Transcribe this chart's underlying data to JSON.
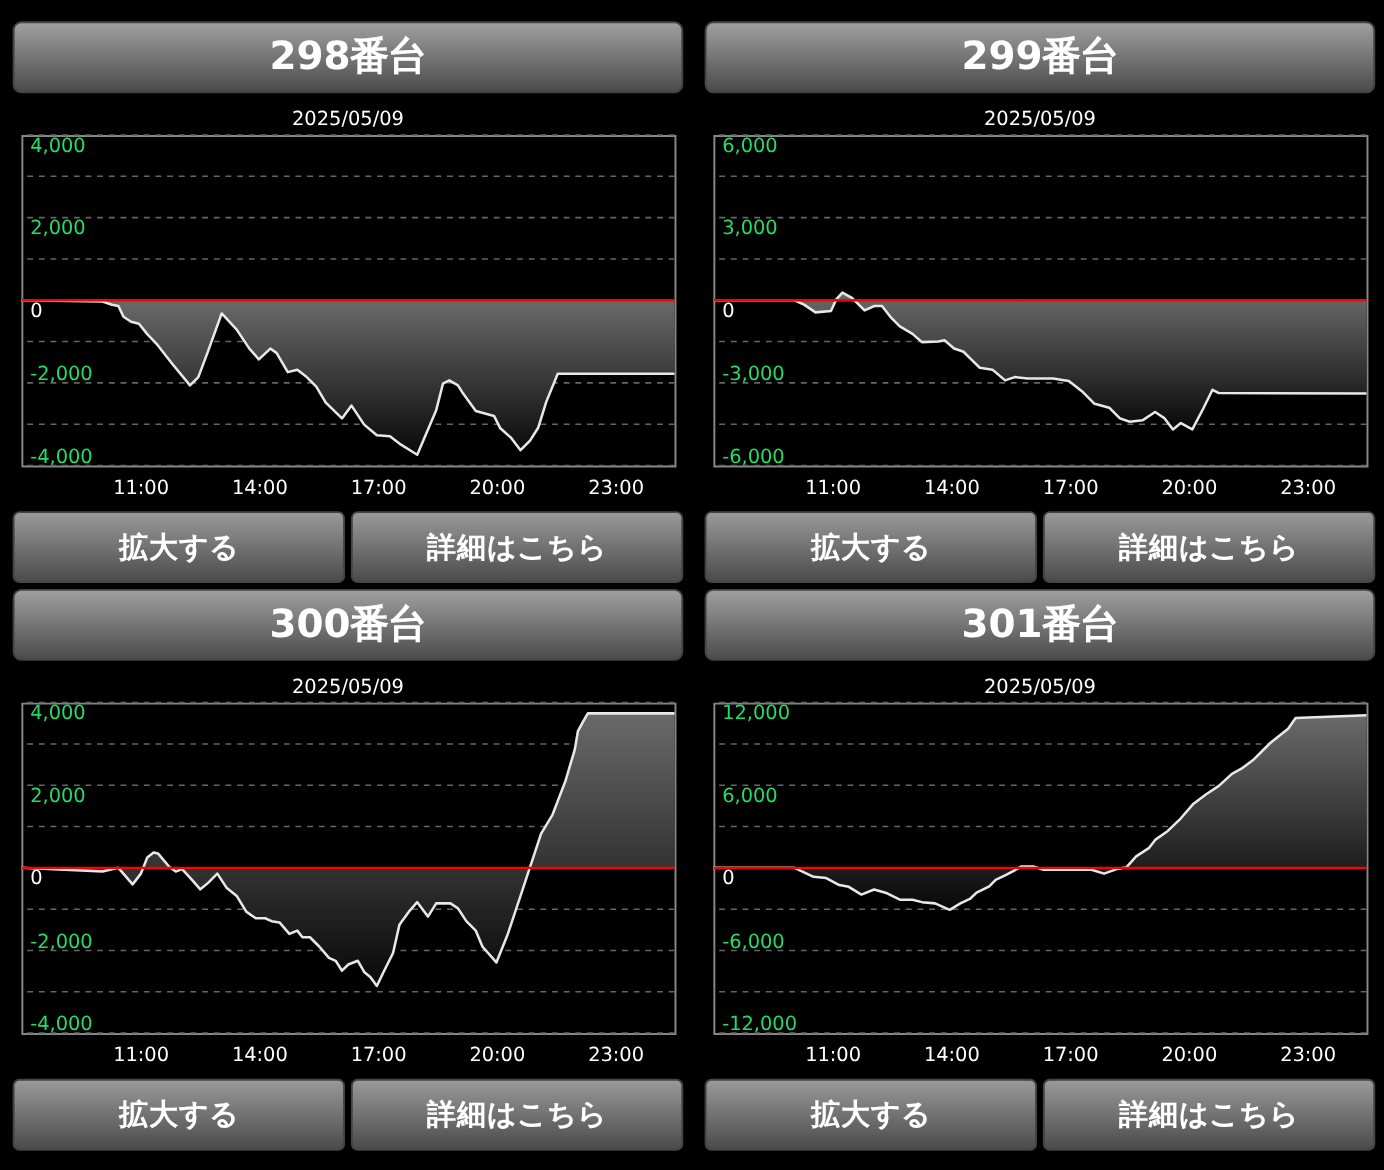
{
  "chart_data": [
    {
      "type": "area",
      "title": "298番台",
      "subtitle": "2025/05/09",
      "annotations": [
        "拡大する",
        "詳細はこちら"
      ],
      "xlim": [
        8,
        24.5
      ],
      "ylim": [
        -4000,
        4000
      ],
      "grid": "y",
      "xticks": [
        {
          "value": 11,
          "label": "11:00"
        },
        {
          "value": 14,
          "label": "14:00"
        },
        {
          "value": 17,
          "label": "17:00"
        },
        {
          "value": 20,
          "label": "20:00"
        },
        {
          "value": 23,
          "label": "23:00"
        }
      ],
      "yticks": [
        {
          "value": -4000,
          "label": "-4,000"
        },
        {
          "value": -3000,
          "label": null
        },
        {
          "value": -2000,
          "label": "-2,000"
        },
        {
          "value": -1000,
          "label": null
        },
        {
          "value": 0,
          "label": "0"
        },
        {
          "value": 1000,
          "label": null
        },
        {
          "value": 2000,
          "label": "2,000"
        },
        {
          "value": 3000,
          "label": null
        },
        {
          "value": 4000,
          "label": "4,000"
        }
      ],
      "ref_lines": [
        {
          "axis": "y",
          "value": 0,
          "color": "#ff0000"
        }
      ],
      "x": [
        8,
        10.05,
        10.29,
        10.45,
        10.58,
        10.77,
        10.97,
        11.18,
        11.42,
        11.82,
        12.26,
        12.47,
        12.71,
        13.06,
        13.44,
        13.76,
        14.0,
        14.29,
        14.45,
        14.73,
        14.97,
        15.21,
        15.45,
        15.69,
        16.1,
        16.34,
        16.66,
        16.98,
        17.31,
        17.55,
        18.0,
        18.48,
        18.65,
        18.81,
        19.03,
        19.16,
        19.48,
        19.94,
        20.1,
        20.37,
        20.61,
        20.85,
        21.06,
        21.26,
        21.55,
        24.5
      ],
      "series": [
        {
          "color": "#e8e8e8",
          "values": [
            0,
            -30,
            -110,
            -140,
            -400,
            -520,
            -570,
            -820,
            -1060,
            -1550,
            -2060,
            -1860,
            -1250,
            -320,
            -710,
            -1170,
            -1430,
            -1170,
            -1280,
            -1740,
            -1680,
            -1860,
            -2090,
            -2480,
            -2860,
            -2550,
            -3010,
            -3270,
            -3290,
            -3470,
            -3740,
            -2660,
            -2020,
            -1940,
            -2060,
            -2260,
            -2680,
            -2800,
            -3100,
            -3330,
            -3630,
            -3400,
            -3080,
            -2460,
            -1780,
            -1780
          ]
        }
      ]
    },
    {
      "type": "area",
      "title": "299番台",
      "subtitle": "2025/05/09",
      "annotations": [
        "拡大する",
        "詳細はこちら"
      ],
      "xlim": [
        8,
        24.5
      ],
      "ylim": [
        -6000,
        6000
      ],
      "grid": "y",
      "xticks": [
        {
          "value": 11,
          "label": "11:00"
        },
        {
          "value": 14,
          "label": "14:00"
        },
        {
          "value": 17,
          "label": "17:00"
        },
        {
          "value": 20,
          "label": "20:00"
        },
        {
          "value": 23,
          "label": "23:00"
        }
      ],
      "yticks": [
        {
          "value": -6000,
          "label": "-6,000"
        },
        {
          "value": -4500,
          "label": null
        },
        {
          "value": -3000,
          "label": "-3,000"
        },
        {
          "value": -1500,
          "label": null
        },
        {
          "value": 0,
          "label": "0"
        },
        {
          "value": 1500,
          "label": null
        },
        {
          "value": 3000,
          "label": "3,000"
        },
        {
          "value": 4500,
          "label": null
        },
        {
          "value": 6000,
          "label": "6,000"
        }
      ],
      "ref_lines": [
        {
          "axis": "y",
          "value": 0,
          "color": "#ff0000"
        }
      ],
      "x": [
        8,
        10.05,
        10.29,
        10.58,
        10.97,
        11.1,
        11.26,
        11.5,
        11.82,
        12.06,
        12.26,
        12.47,
        12.71,
        13.03,
        13.27,
        13.68,
        13.84,
        14.08,
        14.32,
        14.48,
        14.73,
        15.05,
        15.37,
        15.61,
        15.94,
        16.58,
        16.98,
        17.31,
        17.63,
        18.0,
        18.27,
        18.52,
        18.84,
        19.16,
        19.4,
        19.61,
        19.81,
        20.1,
        20.37,
        20.61,
        20.77,
        24.5
      ],
      "series": [
        {
          "color": "#e8e8e8",
          "values": [
            0,
            0,
            -160,
            -440,
            -390,
            20,
            280,
            90,
            -370,
            -210,
            -210,
            -600,
            -950,
            -1220,
            -1520,
            -1500,
            -1450,
            -1750,
            -1870,
            -2100,
            -2450,
            -2520,
            -2910,
            -2790,
            -2840,
            -2840,
            -2930,
            -3300,
            -3760,
            -3900,
            -4290,
            -4410,
            -4360,
            -4060,
            -4290,
            -4690,
            -4460,
            -4690,
            -3950,
            -3250,
            -3370,
            -3390
          ]
        }
      ]
    },
    {
      "type": "area",
      "title": "300番台",
      "subtitle": "2025/05/09",
      "annotations": [
        "拡大する",
        "詳細はこちら"
      ],
      "xlim": [
        8,
        24.5
      ],
      "ylim": [
        -4000,
        4000
      ],
      "grid": "y",
      "xticks": [
        {
          "value": 11,
          "label": "11:00"
        },
        {
          "value": 14,
          "label": "14:00"
        },
        {
          "value": 17,
          "label": "17:00"
        },
        {
          "value": 20,
          "label": "20:00"
        },
        {
          "value": 23,
          "label": "23:00"
        }
      ],
      "yticks": [
        {
          "value": -4000,
          "label": "-4,000"
        },
        {
          "value": -3000,
          "label": null
        },
        {
          "value": -2000,
          "label": "-2,000"
        },
        {
          "value": -1000,
          "label": null
        },
        {
          "value": 0,
          "label": "0"
        },
        {
          "value": 1000,
          "label": null
        },
        {
          "value": 2000,
          "label": "2,000"
        },
        {
          "value": 3000,
          "label": null
        },
        {
          "value": 4000,
          "label": "4,000"
        }
      ],
      "ref_lines": [
        {
          "axis": "y",
          "value": 0,
          "color": "#ff0000"
        }
      ],
      "x": [
        8,
        10.05,
        10.45,
        10.81,
        11.02,
        11.18,
        11.34,
        11.45,
        11.74,
        11.9,
        12.06,
        12.31,
        12.52,
        12.71,
        12.95,
        13.19,
        13.44,
        13.68,
        13.92,
        14.16,
        14.32,
        14.52,
        14.77,
        14.97,
        15.1,
        15.29,
        15.53,
        15.77,
        15.94,
        16.1,
        16.26,
        16.5,
        16.66,
        16.82,
        16.98,
        17.15,
        17.39,
        17.55,
        17.79,
        18.0,
        18.27,
        18.48,
        18.84,
        19.03,
        19.24,
        19.48,
        19.65,
        20.0,
        20.29,
        20.61,
        20.85,
        21.13,
        21.42,
        21.74,
        21.98,
        22.06,
        22.19,
        22.31,
        24.5
      ],
      "series": [
        {
          "color": "#e8e8e8",
          "values": [
            0,
            -90,
            0,
            -400,
            -140,
            250,
            370,
            350,
            20,
            -90,
            -30,
            -290,
            -520,
            -370,
            -140,
            -490,
            -680,
            -1060,
            -1220,
            -1220,
            -1290,
            -1320,
            -1600,
            -1520,
            -1680,
            -1680,
            -1910,
            -2180,
            -2250,
            -2490,
            -2340,
            -2250,
            -2520,
            -2650,
            -2860,
            -2520,
            -2060,
            -1380,
            -1060,
            -830,
            -1180,
            -860,
            -860,
            -980,
            -1290,
            -1520,
            -1910,
            -2290,
            -1600,
            -680,
            20,
            830,
            1290,
            2090,
            2860,
            3310,
            3540,
            3740,
            3740
          ]
        }
      ]
    },
    {
      "type": "area",
      "title": "301番台",
      "subtitle": "2025/05/09",
      "annotations": [
        "拡大する",
        "詳細はこちら"
      ],
      "xlim": [
        8,
        24.5
      ],
      "ylim": [
        -12000,
        12000
      ],
      "grid": "y",
      "xticks": [
        {
          "value": 11,
          "label": "11:00"
        },
        {
          "value": 14,
          "label": "14:00"
        },
        {
          "value": 17,
          "label": "17:00"
        },
        {
          "value": 20,
          "label": "20:00"
        },
        {
          "value": 23,
          "label": "23:00"
        }
      ],
      "yticks": [
        {
          "value": -12000,
          "label": "-12,000"
        },
        {
          "value": -9000,
          "label": null
        },
        {
          "value": -6000,
          "label": "-6,000"
        },
        {
          "value": -3000,
          "label": null
        },
        {
          "value": 0,
          "label": "0"
        },
        {
          "value": 3000,
          "label": null
        },
        {
          "value": 6000,
          "label": "6,000"
        },
        {
          "value": 9000,
          "label": null
        },
        {
          "value": 12000,
          "label": "12,000"
        }
      ],
      "ref_lines": [
        {
          "axis": "y",
          "value": 0,
          "color": "#ff0000"
        }
      ],
      "x": [
        8,
        10.05,
        10.53,
        10.85,
        11.18,
        11.42,
        11.74,
        12.06,
        12.39,
        12.71,
        13.03,
        13.27,
        13.6,
        13.97,
        14.24,
        14.48,
        14.65,
        14.97,
        15.13,
        15.37,
        15.61,
        15.77,
        16.1,
        16.34,
        17.55,
        17.87,
        18.19,
        18.44,
        18.68,
        19.0,
        19.16,
        19.48,
        19.81,
        20.13,
        20.45,
        20.77,
        21.1,
        21.34,
        21.66,
        22.06,
        22.52,
        22.71,
        24.5
      ],
      "series": [
        {
          "color": "#e8e8e8",
          "values": [
            0,
            0,
            -650,
            -740,
            -1250,
            -1380,
            -1940,
            -1570,
            -1850,
            -2310,
            -2310,
            -2490,
            -2580,
            -3050,
            -2580,
            -2260,
            -1800,
            -1340,
            -880,
            -550,
            -180,
            90,
            90,
            -140,
            -140,
            -420,
            -90,
            50,
            830,
            1430,
            2030,
            2680,
            3600,
            4660,
            5350,
            5950,
            6830,
            7200,
            7890,
            9050,
            10110,
            10890,
            11080
          ]
        }
      ]
    }
  ]
}
